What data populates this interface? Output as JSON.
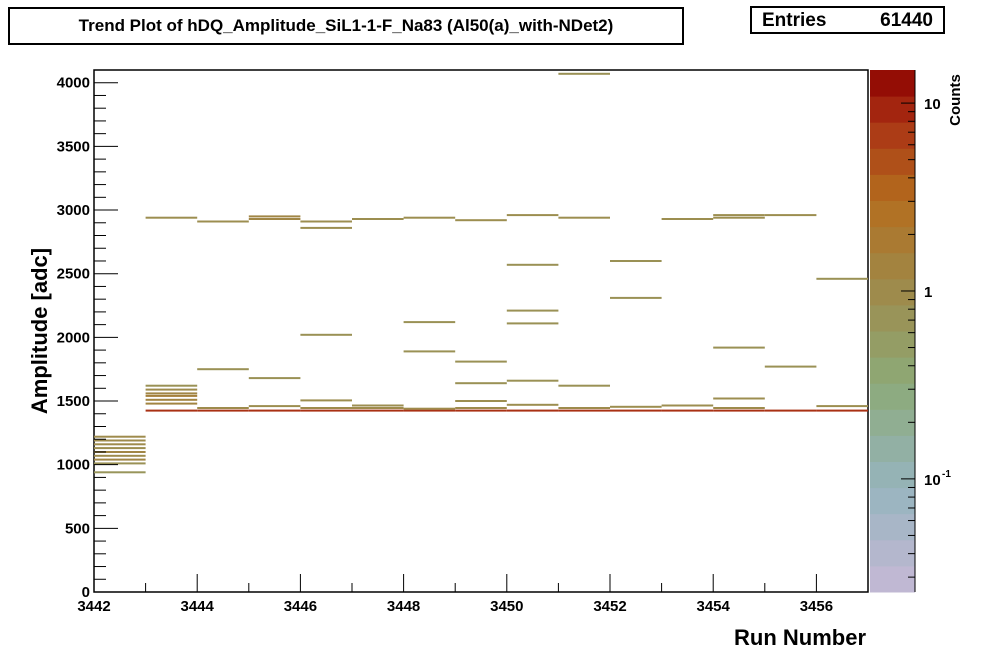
{
  "title": "Trend Plot of hDQ_Amplitude_SiL1-1-F_Na83 (Al50(a)_with-NDet2)",
  "stats": {
    "entries_label": "Entries",
    "entries_value": "61440"
  },
  "colorbar": {
    "label": "Counts",
    "scale": "log",
    "tick_labels": [
      "10",
      "1",
      "10"
    ],
    "exponent": "-1"
  },
  "chart_data": {
    "type": "heatmap",
    "xlabel": "Run Number",
    "ylabel": "Amplitude [adc]",
    "xlim": [
      3442,
      3457
    ],
    "ylim": [
      0,
      4100
    ],
    "x_tick_labels": [
      "3442",
      "3444",
      "3446",
      "3448",
      "3450",
      "3452",
      "3454",
      "3456"
    ],
    "y_tick_labels": [
      "0",
      "500",
      "1000",
      "1500",
      "2000",
      "2500",
      "3000",
      "3500",
      "4000"
    ],
    "zscale": "log",
    "bin_width_x": 1,
    "points": [
      [
        3442,
        940,
        0.7
      ],
      [
        3442,
        1010,
        0.8
      ],
      [
        3442,
        1040,
        1.2
      ],
      [
        3442,
        1070,
        1.0
      ],
      [
        3442,
        1100,
        1.2
      ],
      [
        3442,
        1130,
        0.9
      ],
      [
        3442,
        1160,
        1.0
      ],
      [
        3442,
        1190,
        1.0
      ],
      [
        3442,
        1220,
        1.0
      ],
      [
        3443,
        1425,
        8.0
      ],
      [
        3443,
        1480,
        1.3
      ],
      [
        3443,
        1510,
        1.3
      ],
      [
        3443,
        1540,
        1.5
      ],
      [
        3443,
        1560,
        1.2
      ],
      [
        3443,
        1590,
        1.0
      ],
      [
        3443,
        1620,
        0.8
      ],
      [
        3443,
        2940,
        0.9
      ],
      [
        3444,
        1425,
        8.0
      ],
      [
        3444,
        1445,
        1.0
      ],
      [
        3444,
        1750,
        0.8
      ],
      [
        3444,
        2910,
        0.9
      ],
      [
        3445,
        1425,
        8.0
      ],
      [
        3445,
        1460,
        0.9
      ],
      [
        3445,
        1680,
        0.8
      ],
      [
        3445,
        2930,
        1.2
      ],
      [
        3445,
        2950,
        1.2
      ],
      [
        3446,
        1425,
        8.0
      ],
      [
        3446,
        1445,
        1.0
      ],
      [
        3446,
        1505,
        0.9
      ],
      [
        3446,
        2020,
        0.8
      ],
      [
        3446,
        2860,
        0.9
      ],
      [
        3446,
        2910,
        0.9
      ],
      [
        3447,
        1425,
        8.0
      ],
      [
        3447,
        1445,
        1.0
      ],
      [
        3447,
        1465,
        0.9
      ],
      [
        3447,
        2930,
        0.9
      ],
      [
        3448,
        1425,
        8.0
      ],
      [
        3448,
        1440,
        1.0
      ],
      [
        3448,
        1890,
        0.8
      ],
      [
        3448,
        2120,
        0.8
      ],
      [
        3448,
        2940,
        0.9
      ],
      [
        3449,
        1425,
        8.0
      ],
      [
        3449,
        1445,
        1.0
      ],
      [
        3449,
        1500,
        0.9
      ],
      [
        3449,
        1640,
        0.8
      ],
      [
        3449,
        1810,
        0.8
      ],
      [
        3449,
        2920,
        0.9
      ],
      [
        3450,
        1425,
        8.0
      ],
      [
        3450,
        1470,
        0.9
      ],
      [
        3450,
        1660,
        0.8
      ],
      [
        3450,
        2110,
        0.8
      ],
      [
        3450,
        2210,
        0.8
      ],
      [
        3450,
        2570,
        0.8
      ],
      [
        3450,
        2960,
        0.9
      ],
      [
        3451,
        1425,
        8.0
      ],
      [
        3451,
        1445,
        1.0
      ],
      [
        3451,
        1620,
        0.8
      ],
      [
        3451,
        2940,
        0.9
      ],
      [
        3451,
        4070,
        0.8
      ],
      [
        3452,
        1425,
        8.0
      ],
      [
        3452,
        1455,
        0.9
      ],
      [
        3452,
        2310,
        0.8
      ],
      [
        3452,
        2600,
        0.8
      ],
      [
        3453,
        1425,
        8.0
      ],
      [
        3453,
        1465,
        0.9
      ],
      [
        3453,
        2930,
        0.9
      ],
      [
        3454,
        1425,
        8.0
      ],
      [
        3454,
        1445,
        1.0
      ],
      [
        3454,
        1520,
        0.9
      ],
      [
        3454,
        1920,
        0.8
      ],
      [
        3454,
        2940,
        0.9
      ],
      [
        3454,
        2960,
        0.9
      ],
      [
        3455,
        1425,
        8.0
      ],
      [
        3455,
        1770,
        0.8
      ],
      [
        3455,
        2960,
        0.9
      ],
      [
        3456,
        1425,
        8.0
      ],
      [
        3456,
        1460,
        0.9
      ],
      [
        3456,
        2460,
        0.8
      ]
    ]
  }
}
